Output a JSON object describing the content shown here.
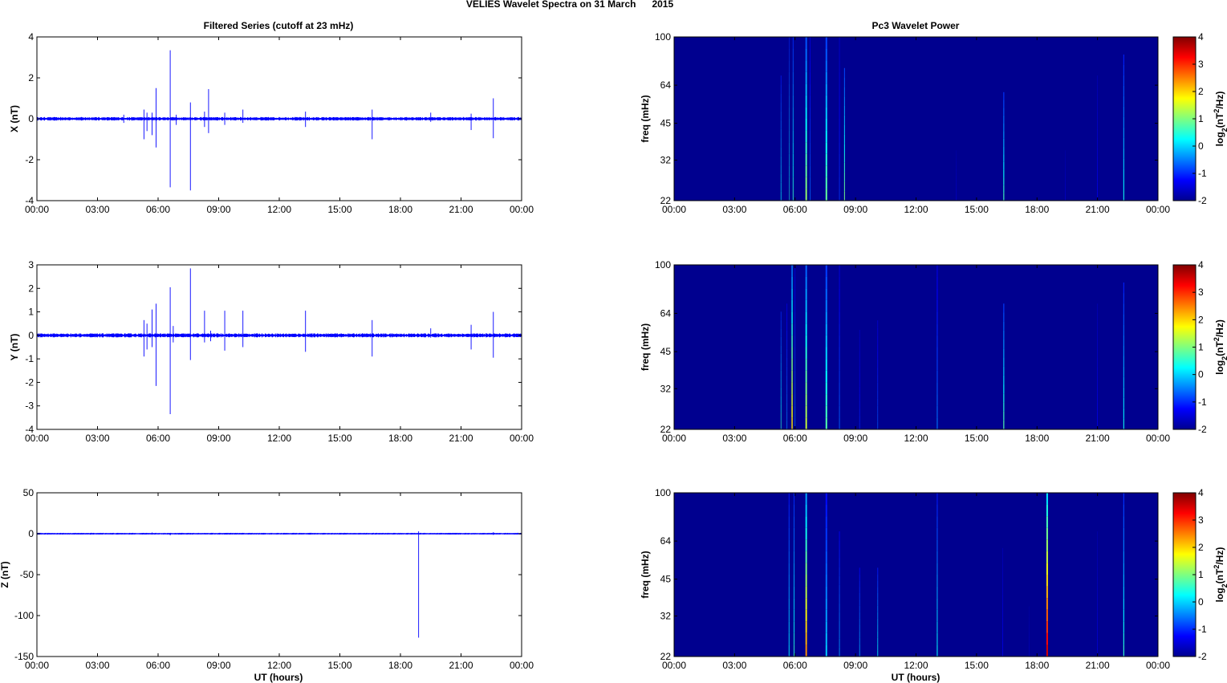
{
  "figure": {
    "title": "VELIES Wavelet Spectra on 31 March      2015",
    "left_title": "Filtered Series (cutoff at 23 mHz)",
    "right_title": "Pc3 Wavelet Power",
    "xlabel": "UT (hours)"
  },
  "colors": {
    "trace": "#0000ff",
    "background_power": "#00008f",
    "axis": "#000000"
  },
  "chart_data": [
    {
      "type": "line",
      "id": "x_series",
      "ylabel": "X (nT)",
      "ylim": [
        -4,
        4
      ],
      "yticks": [
        -4,
        -2,
        0,
        2,
        4
      ],
      "xlim": [
        0,
        24
      ],
      "xticks": [
        0,
        3,
        6,
        9,
        12,
        15,
        18,
        21,
        24
      ],
      "xticklabels": [
        "00:00",
        "03:00",
        "06:00",
        "09:00",
        "12:00",
        "15:00",
        "18:00",
        "21:00",
        "00:00"
      ],
      "noise": 0.06,
      "spikes": [
        [
          4.3,
          0.2,
          -0.2
        ],
        [
          5.3,
          0.45,
          -1.0
        ],
        [
          5.45,
          0.3,
          -0.6
        ],
        [
          5.7,
          0.3,
          -0.8
        ],
        [
          5.9,
          1.5,
          -1.4
        ],
        [
          6.6,
          3.35,
          -3.35
        ],
        [
          6.9,
          0.2,
          -0.3
        ],
        [
          7.6,
          0.8,
          -3.5
        ],
        [
          8.3,
          0.35,
          -0.4
        ],
        [
          8.5,
          1.45,
          -0.7
        ],
        [
          9.3,
          0.3,
          -0.3
        ],
        [
          10.2,
          0.45,
          -0.2
        ],
        [
          13.3,
          0.35,
          -0.4
        ],
        [
          16.6,
          0.45,
          -1.0
        ],
        [
          19.5,
          0.3,
          -0.15
        ],
        [
          21.5,
          0.25,
          -0.55
        ],
        [
          22.6,
          1.0,
          -0.95
        ]
      ]
    },
    {
      "type": "line",
      "id": "y_series",
      "ylabel": "Y (nT)",
      "ylim": [
        -4,
        3
      ],
      "yticks": [
        -4,
        -3,
        -2,
        -1,
        0,
        1,
        2,
        3
      ],
      "xlim": [
        0,
        24
      ],
      "xticks": [
        0,
        3,
        6,
        9,
        12,
        15,
        18,
        21,
        24
      ],
      "xticklabels": [
        "00:00",
        "03:00",
        "06:00",
        "09:00",
        "12:00",
        "15:00",
        "18:00",
        "21:00",
        "00:00"
      ],
      "noise": 0.06,
      "spikes": [
        [
          5.3,
          0.65,
          -0.9
        ],
        [
          5.45,
          0.5,
          -0.6
        ],
        [
          5.7,
          1.1,
          -0.5
        ],
        [
          5.9,
          1.35,
          -2.15
        ],
        [
          6.6,
          2.05,
          -3.35
        ],
        [
          6.75,
          0.4,
          -0.3
        ],
        [
          7.6,
          2.85,
          -1.05
        ],
        [
          8.3,
          1.05,
          -0.3
        ],
        [
          8.6,
          0.2,
          -0.25
        ],
        [
          9.3,
          1.05,
          -0.65
        ],
        [
          10.2,
          1.05,
          -0.5
        ],
        [
          13.3,
          1.05,
          -0.7
        ],
        [
          16.6,
          0.65,
          -0.9
        ],
        [
          19.5,
          0.3,
          -0.1
        ],
        [
          21.5,
          0.45,
          -0.6
        ],
        [
          22.6,
          1.0,
          -0.95
        ]
      ]
    },
    {
      "type": "line",
      "id": "z_series",
      "ylabel": "Z (nT)",
      "ylim": [
        -150,
        50
      ],
      "yticks": [
        -150,
        -100,
        -50,
        0,
        50
      ],
      "xlim": [
        0,
        24
      ],
      "xticks": [
        0,
        3,
        6,
        9,
        12,
        15,
        18,
        21,
        24
      ],
      "xticklabels": [
        "00:00",
        "03:00",
        "06:00",
        "09:00",
        "12:00",
        "15:00",
        "18:00",
        "21:00",
        "00:00"
      ],
      "xlabel": "UT (hours)",
      "noise": 0.2,
      "spikes": [
        [
          4.3,
          0.5,
          -0.5
        ],
        [
          5.3,
          1.0,
          -0.8
        ],
        [
          5.7,
          1.5,
          -1.0
        ],
        [
          6.6,
          1.0,
          -2.0
        ],
        [
          7.6,
          0.8,
          -1.0
        ],
        [
          8.3,
          1.0,
          -0.5
        ],
        [
          9.3,
          0.8,
          -0.8
        ],
        [
          10.2,
          0.6,
          -0.4
        ],
        [
          13.3,
          0.6,
          -0.5
        ],
        [
          18.9,
          3.0,
          -127.0
        ],
        [
          22.6,
          2.0,
          -1.5
        ]
      ]
    },
    {
      "type": "heatmap",
      "id": "x_power",
      "ylabel": "freq (mHz)",
      "yticks": [
        22,
        32,
        45,
        64,
        100
      ],
      "ylim": [
        22,
        100
      ],
      "yscale": "log",
      "xlim": [
        0,
        24
      ],
      "xticks": [
        0,
        3,
        6,
        9,
        12,
        15,
        18,
        21,
        24
      ],
      "xticklabels": [
        "00:00",
        "03:00",
        "06:00",
        "09:00",
        "12:00",
        "15:00",
        "18:00",
        "21:00",
        "00:00"
      ],
      "colorbar": {
        "label": "log2(nT^2/Hz)",
        "ticks": [
          -2,
          -1,
          0,
          1,
          2,
          3,
          4
        ],
        "range": [
          -2,
          4
        ]
      },
      "background_value": -1.9,
      "events": [
        [
          5.3,
          0.3,
          70,
          0.3
        ],
        [
          5.7,
          0.5,
          100,
          0.22
        ],
        [
          5.9,
          0.6,
          100,
          0.38
        ],
        [
          6.55,
          1.2,
          100,
          0.86
        ],
        [
          6.75,
          -0.6,
          100,
          0.34
        ],
        [
          7.55,
          0.9,
          100,
          0.9
        ],
        [
          8.2,
          -0.9,
          100,
          0.34
        ],
        [
          8.45,
          1.0,
          75,
          0.44
        ],
        [
          14.0,
          -1.5,
          35,
          0.26
        ],
        [
          16.35,
          0.7,
          60,
          0.5
        ],
        [
          19.4,
          -1.4,
          35,
          0.22
        ],
        [
          21.0,
          -1.3,
          70,
          0.32
        ],
        [
          22.3,
          0.4,
          85,
          0.48
        ]
      ]
    },
    {
      "type": "heatmap",
      "id": "y_power",
      "ylabel": "freq (mHz)",
      "yticks": [
        22,
        32,
        45,
        64,
        100
      ],
      "ylim": [
        22,
        100
      ],
      "yscale": "log",
      "xlim": [
        0,
        24
      ],
      "xticks": [
        0,
        3,
        6,
        9,
        12,
        15,
        18,
        21,
        24
      ],
      "xticklabels": [
        "00:00",
        "03:00",
        "06:00",
        "09:00",
        "12:00",
        "15:00",
        "18:00",
        "21:00",
        "00:00"
      ],
      "colorbar": {
        "label": "log2(nT^2/Hz)",
        "ticks": [
          -2,
          -1,
          0,
          1,
          2,
          3,
          4
        ],
        "range": [
          -2,
          4
        ]
      },
      "background_value": -1.9,
      "events": [
        [
          5.3,
          0.6,
          65,
          0.3
        ],
        [
          5.6,
          -0.4,
          70,
          0.3
        ],
        [
          5.85,
          2.0,
          100,
          0.64
        ],
        [
          6.0,
          -0.5,
          100,
          0.28
        ],
        [
          6.55,
          1.5,
          100,
          0.86
        ],
        [
          7.55,
          0.8,
          100,
          0.92
        ],
        [
          8.2,
          -0.6,
          100,
          0.38
        ],
        [
          9.2,
          -1.0,
          55,
          0.28
        ],
        [
          10.1,
          -0.7,
          60,
          0.3
        ],
        [
          13.05,
          -0.5,
          100,
          0.48
        ],
        [
          16.35,
          0.8,
          70,
          0.52
        ],
        [
          21.0,
          -1.3,
          70,
          0.32
        ],
        [
          22.3,
          0.4,
          85,
          0.48
        ]
      ]
    },
    {
      "type": "heatmap",
      "id": "z_power",
      "ylabel": "freq (mHz)",
      "yticks": [
        22,
        32,
        45,
        64,
        100
      ],
      "ylim": [
        22,
        100
      ],
      "yscale": "log",
      "xlim": [
        0,
        24
      ],
      "xticks": [
        0,
        3,
        6,
        9,
        12,
        15,
        18,
        21,
        24
      ],
      "xticklabels": [
        "00:00",
        "03:00",
        "06:00",
        "09:00",
        "12:00",
        "15:00",
        "18:00",
        "21:00",
        "00:00"
      ],
      "colorbar": {
        "label": "log2(nT^2/Hz)",
        "ticks": [
          -2,
          -1,
          0,
          1,
          2,
          3,
          4
        ],
        "range": [
          -2,
          4
        ]
      },
      "background_value": -1.9,
      "events": [
        [
          5.7,
          0.2,
          100,
          0.42
        ],
        [
          5.95,
          0.6,
          100,
          0.4
        ],
        [
          6.55,
          2.5,
          100,
          0.86
        ],
        [
          7.55,
          0.0,
          100,
          0.88
        ],
        [
          8.2,
          -0.2,
          70,
          0.36
        ],
        [
          9.2,
          -0.1,
          50,
          0.34
        ],
        [
          10.1,
          0.3,
          50,
          0.36
        ],
        [
          13.05,
          0.3,
          100,
          0.46
        ],
        [
          16.3,
          -1.3,
          60,
          0.32
        ],
        [
          17.6,
          -1.5,
          35,
          0.22
        ],
        [
          18.5,
          3.6,
          100,
          0.9
        ],
        [
          21.0,
          -1.4,
          70,
          0.3
        ],
        [
          22.3,
          0.6,
          100,
          0.52
        ]
      ]
    }
  ]
}
